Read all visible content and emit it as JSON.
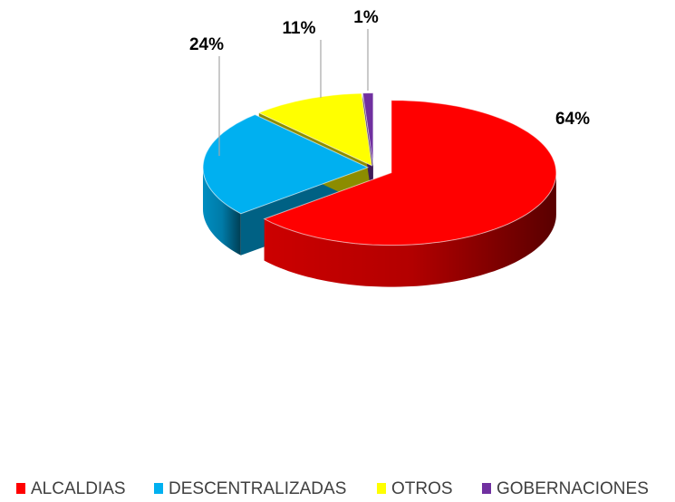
{
  "chart_data": {
    "type": "pie3d",
    "categories": [
      "ALCALDIAS",
      "DESCENTRALIZADAS",
      "OTROS",
      "GOBERNACIONES"
    ],
    "values": [
      64,
      24,
      11,
      1
    ],
    "value_labels": [
      "64%",
      "24%",
      "11%",
      "1%"
    ],
    "colors": [
      "#ff0000",
      "#00b0f0",
      "#ffff00",
      "#7030a0"
    ],
    "legend": "bottom"
  }
}
